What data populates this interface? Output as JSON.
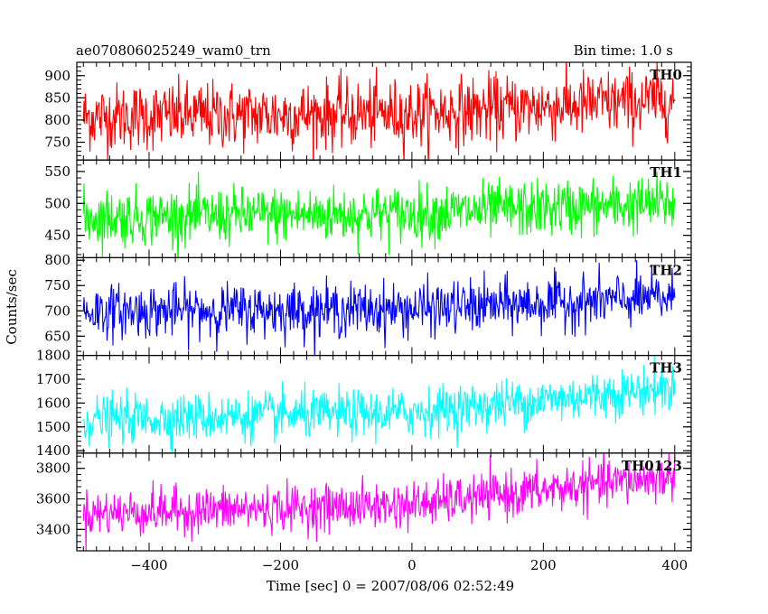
{
  "chart_data": {
    "type": "line",
    "title_left": "ae070806025249_wam0_trn",
    "title_right": "Bin time: 1.0 s",
    "xlabel": "Time [sec] 0 = 2007/08/06 02:52:49",
    "ylabel": "Counts/sec",
    "xlim": [
      -510,
      425
    ],
    "x_ticks": [
      -400,
      -200,
      0,
      200,
      400
    ],
    "x_range": [
      -500,
      400
    ],
    "bin_time": 1.0,
    "panels": [
      {
        "name": "TH0",
        "color": "#ff0000",
        "ylim": [
          710,
          930
        ],
        "y_ticks": [
          750,
          800,
          850,
          900
        ],
        "trend": [
          {
            "x": -500,
            "y": 807
          },
          {
            "x": 0,
            "y": 815
          },
          {
            "x": 400,
            "y": 845
          }
        ],
        "noise_sd": 38
      },
      {
        "name": "TH1",
        "color": "#00ff00",
        "ylim": [
          415,
          568
        ],
        "y_ticks": [
          450,
          500,
          550
        ],
        "trend": [
          {
            "x": -500,
            "y": 478
          },
          {
            "x": 0,
            "y": 484
          },
          {
            "x": 400,
            "y": 500
          }
        ],
        "noise_sd": 22
      },
      {
        "name": "TH2",
        "color": "#0000ff",
        "ylim": [
          612,
          805
        ],
        "y_ticks": [
          650,
          700,
          750,
          800
        ],
        "trend": [
          {
            "x": -500,
            "y": 699
          },
          {
            "x": 0,
            "y": 703
          },
          {
            "x": 400,
            "y": 726
          }
        ],
        "noise_sd": 26
      },
      {
        "name": "TH3",
        "color": "#00ffff",
        "ylim": [
          1390,
          1800
        ],
        "y_ticks": [
          1400,
          1500,
          1600,
          1700,
          1800
        ],
        "trend": [
          {
            "x": -500,
            "y": 1530
          },
          {
            "x": 0,
            "y": 1560
          },
          {
            "x": 400,
            "y": 1665
          }
        ],
        "noise_sd": 50
      },
      {
        "name": "TH0123",
        "color": "#ff00ff",
        "ylim": [
          3260,
          3900
        ],
        "y_ticks": [
          3400,
          3600,
          3800
        ],
        "trend": [
          {
            "x": -500,
            "y": 3505
          },
          {
            "x": 0,
            "y": 3560
          },
          {
            "x": 400,
            "y": 3750
          }
        ],
        "noise_sd": 75
      }
    ]
  }
}
